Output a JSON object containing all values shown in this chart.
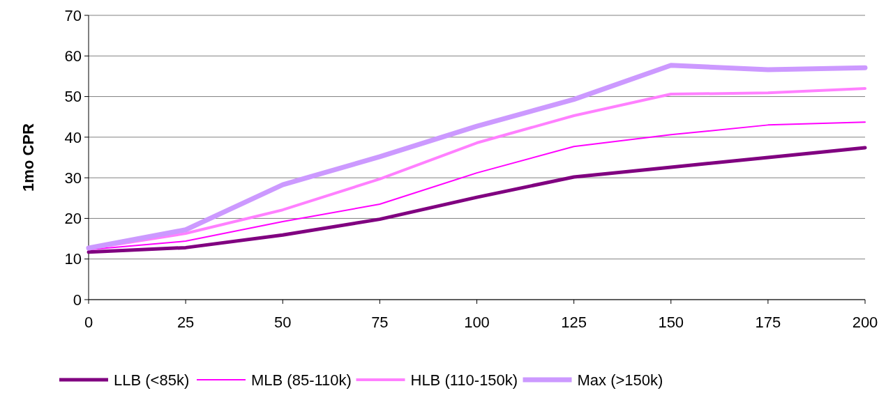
{
  "chart_data": {
    "type": "line",
    "ylabel": "1mo CPR",
    "x": [
      0,
      25,
      50,
      75,
      100,
      125,
      150,
      175,
      200
    ],
    "xlim": [
      0,
      200
    ],
    "xticks": [
      0,
      25,
      50,
      75,
      100,
      125,
      150,
      175,
      200
    ],
    "ylim": [
      0,
      70
    ],
    "yticks": [
      0,
      10,
      20,
      30,
      40,
      50,
      60,
      70
    ],
    "grid": "y",
    "legend": "bottom",
    "marker": "none",
    "line_style": "solid",
    "series": [
      {
        "name": "LLB (<85k)",
        "color": "#800080",
        "values": [
          11.7,
          12.8,
          15.9,
          19.8,
          25.2,
          30.2,
          32.6,
          35,
          37.4
        ]
      },
      {
        "name": "MLB (85-110k)",
        "color": "#ff00ff",
        "values": [
          12.3,
          14.4,
          19.2,
          23.5,
          31.2,
          37.7,
          40.6,
          43,
          43.7
        ]
      },
      {
        "name": "HLB (110-150k)",
        "color": "#ff80ff",
        "values": [
          12.5,
          16.3,
          22.1,
          29.7,
          38.6,
          45.3,
          50.6,
          50.9,
          52
        ]
      },
      {
        "name": "Max (>150k)",
        "color": "#cc99ff",
        "values": [
          12.7,
          17.2,
          28.3,
          35.2,
          42.7,
          49.3,
          57.7,
          56.6,
          57.1
        ]
      }
    ]
  }
}
